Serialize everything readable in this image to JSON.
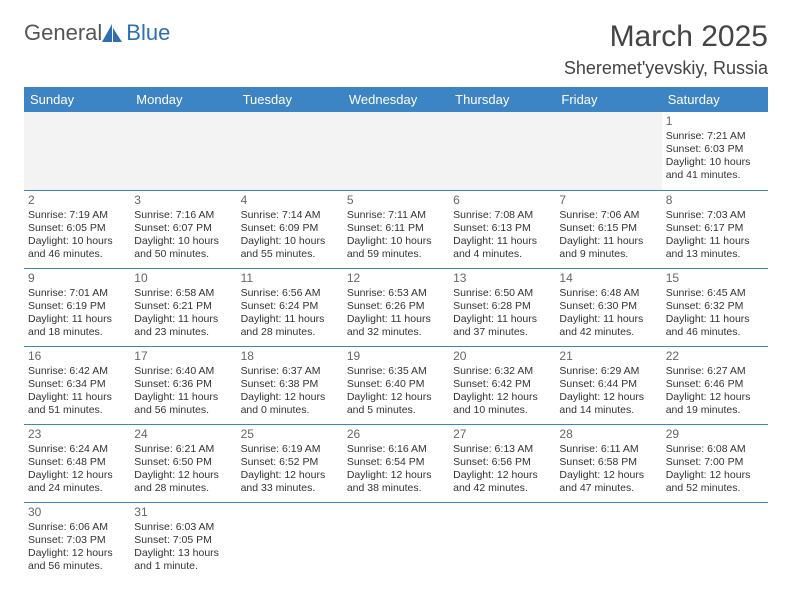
{
  "brand": {
    "part1": "General",
    "part2": "Blue"
  },
  "title": "March 2025",
  "location": "Sheremet'yevskiy, Russia",
  "colors": {
    "header_bg": "#3d84c5",
    "header_text": "#ffffff",
    "grid_line": "#3d84c5",
    "blank_bg": "#f3f3f3",
    "text": "#333333"
  },
  "dayHeaders": [
    "Sunday",
    "Monday",
    "Tuesday",
    "Wednesday",
    "Thursday",
    "Friday",
    "Saturday"
  ],
  "weeks": [
    [
      null,
      null,
      null,
      null,
      null,
      null,
      {
        "n": "1",
        "sr": "7:21 AM",
        "ss": "6:03 PM",
        "dl": "10 hours and 41 minutes."
      }
    ],
    [
      {
        "n": "2",
        "sr": "7:19 AM",
        "ss": "6:05 PM",
        "dl": "10 hours and 46 minutes."
      },
      {
        "n": "3",
        "sr": "7:16 AM",
        "ss": "6:07 PM",
        "dl": "10 hours and 50 minutes."
      },
      {
        "n": "4",
        "sr": "7:14 AM",
        "ss": "6:09 PM",
        "dl": "10 hours and 55 minutes."
      },
      {
        "n": "5",
        "sr": "7:11 AM",
        "ss": "6:11 PM",
        "dl": "10 hours and 59 minutes."
      },
      {
        "n": "6",
        "sr": "7:08 AM",
        "ss": "6:13 PM",
        "dl": "11 hours and 4 minutes."
      },
      {
        "n": "7",
        "sr": "7:06 AM",
        "ss": "6:15 PM",
        "dl": "11 hours and 9 minutes."
      },
      {
        "n": "8",
        "sr": "7:03 AM",
        "ss": "6:17 PM",
        "dl": "11 hours and 13 minutes."
      }
    ],
    [
      {
        "n": "9",
        "sr": "7:01 AM",
        "ss": "6:19 PM",
        "dl": "11 hours and 18 minutes."
      },
      {
        "n": "10",
        "sr": "6:58 AM",
        "ss": "6:21 PM",
        "dl": "11 hours and 23 minutes."
      },
      {
        "n": "11",
        "sr": "6:56 AM",
        "ss": "6:24 PM",
        "dl": "11 hours and 28 minutes."
      },
      {
        "n": "12",
        "sr": "6:53 AM",
        "ss": "6:26 PM",
        "dl": "11 hours and 32 minutes."
      },
      {
        "n": "13",
        "sr": "6:50 AM",
        "ss": "6:28 PM",
        "dl": "11 hours and 37 minutes."
      },
      {
        "n": "14",
        "sr": "6:48 AM",
        "ss": "6:30 PM",
        "dl": "11 hours and 42 minutes."
      },
      {
        "n": "15",
        "sr": "6:45 AM",
        "ss": "6:32 PM",
        "dl": "11 hours and 46 minutes."
      }
    ],
    [
      {
        "n": "16",
        "sr": "6:42 AM",
        "ss": "6:34 PM",
        "dl": "11 hours and 51 minutes."
      },
      {
        "n": "17",
        "sr": "6:40 AM",
        "ss": "6:36 PM",
        "dl": "11 hours and 56 minutes."
      },
      {
        "n": "18",
        "sr": "6:37 AM",
        "ss": "6:38 PM",
        "dl": "12 hours and 0 minutes."
      },
      {
        "n": "19",
        "sr": "6:35 AM",
        "ss": "6:40 PM",
        "dl": "12 hours and 5 minutes."
      },
      {
        "n": "20",
        "sr": "6:32 AM",
        "ss": "6:42 PM",
        "dl": "12 hours and 10 minutes."
      },
      {
        "n": "21",
        "sr": "6:29 AM",
        "ss": "6:44 PM",
        "dl": "12 hours and 14 minutes."
      },
      {
        "n": "22",
        "sr": "6:27 AM",
        "ss": "6:46 PM",
        "dl": "12 hours and 19 minutes."
      }
    ],
    [
      {
        "n": "23",
        "sr": "6:24 AM",
        "ss": "6:48 PM",
        "dl": "12 hours and 24 minutes."
      },
      {
        "n": "24",
        "sr": "6:21 AM",
        "ss": "6:50 PM",
        "dl": "12 hours and 28 minutes."
      },
      {
        "n": "25",
        "sr": "6:19 AM",
        "ss": "6:52 PM",
        "dl": "12 hours and 33 minutes."
      },
      {
        "n": "26",
        "sr": "6:16 AM",
        "ss": "6:54 PM",
        "dl": "12 hours and 38 minutes."
      },
      {
        "n": "27",
        "sr": "6:13 AM",
        "ss": "6:56 PM",
        "dl": "12 hours and 42 minutes."
      },
      {
        "n": "28",
        "sr": "6:11 AM",
        "ss": "6:58 PM",
        "dl": "12 hours and 47 minutes."
      },
      {
        "n": "29",
        "sr": "6:08 AM",
        "ss": "7:00 PM",
        "dl": "12 hours and 52 minutes."
      }
    ],
    [
      {
        "n": "30",
        "sr": "6:06 AM",
        "ss": "7:03 PM",
        "dl": "12 hours and 56 minutes."
      },
      {
        "n": "31",
        "sr": "6:03 AM",
        "ss": "7:05 PM",
        "dl": "13 hours and 1 minute."
      },
      null,
      null,
      null,
      null,
      null
    ]
  ],
  "labels": {
    "sunrise": "Sunrise: ",
    "sunset": "Sunset: ",
    "daylight": "Daylight: "
  }
}
